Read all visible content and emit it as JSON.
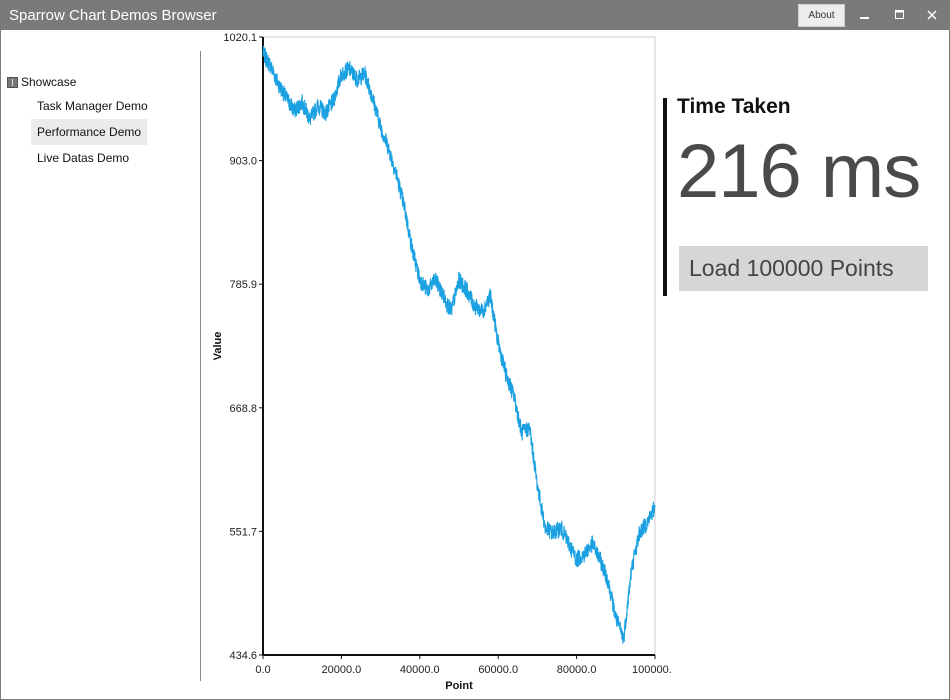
{
  "window": {
    "title": "Sparrow Chart Demos Browser",
    "about_label": "About"
  },
  "sidebar": {
    "root_label": "Showcase",
    "items": [
      {
        "label": "Task Manager Demo",
        "selected": false
      },
      {
        "label": "Performance Demo",
        "selected": true
      },
      {
        "label": "Live Datas Demo",
        "selected": false
      }
    ]
  },
  "performance": {
    "time_label": "Time Taken",
    "time_value": "216 ms",
    "load_button_label": "Load 100000 Points"
  },
  "colors": {
    "titlebar": "#7a7a7a",
    "series": "#1ba1e2",
    "button": "#d6d6d6"
  },
  "chart_data": {
    "type": "line",
    "xlabel": "Point",
    "ylabel": "Value",
    "xlim": [
      0,
      100000
    ],
    "ylim": [
      434.6,
      1020.1
    ],
    "x_ticks": [
      "0.0",
      "20000.0",
      "40000.0",
      "60000.0",
      "80000.0",
      "100000.0"
    ],
    "y_ticks": [
      "1020.1",
      "903.0",
      "785.9",
      "668.8",
      "551.7",
      "434.6"
    ],
    "series": [
      {
        "x": [
          0,
          2000,
          4000,
          6000,
          8000,
          10000,
          12000,
          14000,
          16000,
          18000,
          20000,
          22000,
          24000,
          26000,
          28000,
          30000,
          32000,
          34000,
          36000,
          38000,
          40000,
          42000,
          44000,
          46000,
          48000,
          50000,
          52000,
          54000,
          56000,
          58000,
          60000,
          62000,
          64000,
          66000,
          68000,
          70000,
          72000,
          74000,
          76000,
          78000,
          80000,
          82000,
          84000,
          86000,
          88000,
          90000,
          92000,
          94000,
          96000,
          98000,
          100000
        ],
        "y": [
          1005,
          992,
          975,
          962,
          950,
          958,
          942,
          955,
          948,
          960,
          985,
          990,
          980,
          985,
          962,
          935,
          915,
          890,
          860,
          820,
          790,
          780,
          790,
          775,
          760,
          790,
          780,
          765,
          760,
          775,
          730,
          700,
          680,
          645,
          650,
          595,
          555,
          550,
          555,
          540,
          525,
          530,
          540,
          525,
          505,
          470,
          450,
          515,
          550,
          560,
          575
        ]
      }
    ]
  }
}
